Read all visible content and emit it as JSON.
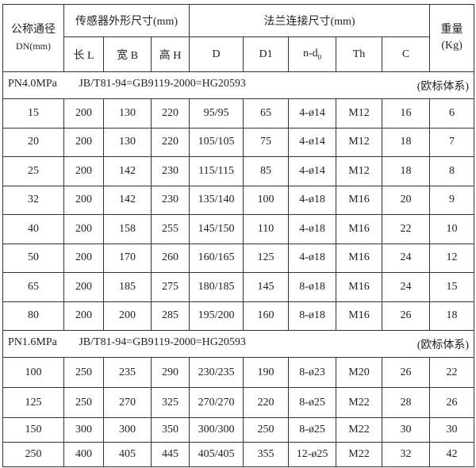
{
  "header": {
    "dn_label": "公称通径",
    "dn_unit": "DN(mm)",
    "sensor_group": "传感器外形尺寸(mm)",
    "flange_group": "法兰连接尺寸(mm)",
    "weight_label": "重量",
    "weight_unit": "(Kg)",
    "cols": [
      "长 L",
      "宽 B",
      "高 H",
      "D",
      "D1",
      "n-d",
      "Th",
      "C"
    ],
    "nd_sub": "0"
  },
  "sections": [
    {
      "pressure": "PN4.0MPa",
      "standard": "JB/T81-94=GB9119-2000=HG20593",
      "system": "(欧标体系)",
      "rows": [
        [
          "15",
          "200",
          "130",
          "220",
          "95/95",
          "65",
          "4-ø14",
          "M12",
          "16",
          "6"
        ],
        [
          "20",
          "200",
          "130",
          "220",
          "105/105",
          "75",
          "4-ø14",
          "M12",
          "18",
          "7"
        ],
        [
          "25",
          "200",
          "142",
          "230",
          "115/115",
          "85",
          "4-ø14",
          "M12",
          "18",
          "8"
        ],
        [
          "32",
          "200",
          "142",
          "230",
          "135/140",
          "100",
          "4-ø18",
          "M16",
          "20",
          "9"
        ],
        [
          "40",
          "200",
          "158",
          "255",
          "145/150",
          "110",
          "4-ø18",
          "M16",
          "22",
          "10"
        ],
        [
          "50",
          "200",
          "170",
          "260",
          "160/165",
          "125",
          "4-ø18",
          "M16",
          "24",
          "12"
        ],
        [
          "65",
          "200",
          "185",
          "275",
          "180/185",
          "145",
          "8-ø18",
          "M16",
          "24",
          "15"
        ],
        [
          "80",
          "200",
          "200",
          "285",
          "195/200",
          "160",
          "8-ø18",
          "M16",
          "26",
          "18"
        ]
      ]
    },
    {
      "pressure": "PN1.6MPa",
      "standard": "JB/T81-94=GB9119-2000=HG20593",
      "system": "(欧标体系)",
      "rows": [
        [
          "100",
          "250",
          "235",
          "290",
          "230/235",
          "190",
          "8-ø23",
          "M20",
          "26",
          "22"
        ],
        [
          "125",
          "250",
          "270",
          "325",
          "270/270",
          "220",
          "8-ø25",
          "M22",
          "28",
          "26"
        ],
        [
          "150",
          "300",
          "300",
          "350",
          "300/300",
          "250",
          "8-ø25",
          "M22",
          "30",
          "30"
        ],
        [
          "250",
          "400",
          "405",
          "445",
          "405/405",
          "355",
          "12-ø25",
          "M22",
          "32",
          "42"
        ]
      ]
    }
  ]
}
